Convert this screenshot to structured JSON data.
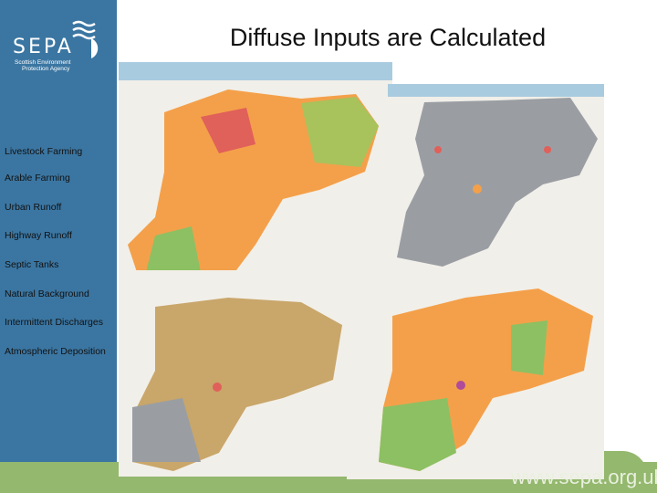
{
  "logo": {
    "text": "SEPA",
    "subtitle_line1": "Scottish Environment",
    "subtitle_line2": "Protection Agency"
  },
  "title": "Diffuse Inputs are Calculated",
  "legend": [
    "Livestock Farming",
    "Arable Farming",
    "Urban Runoff",
    "Highway Runoff",
    "Septic Tanks",
    "Natural Background",
    "Intermittent Discharges",
    "Atmospheric Deposition"
  ],
  "footer": {
    "url": "www.sepa.org.uk"
  },
  "colors": {
    "sidebar": "#3b76a2",
    "footer": "#94b86e",
    "orange": "#f4a04a",
    "green": "#8cc063",
    "grey": "#9a9ea3",
    "red": "#e05a5a"
  }
}
